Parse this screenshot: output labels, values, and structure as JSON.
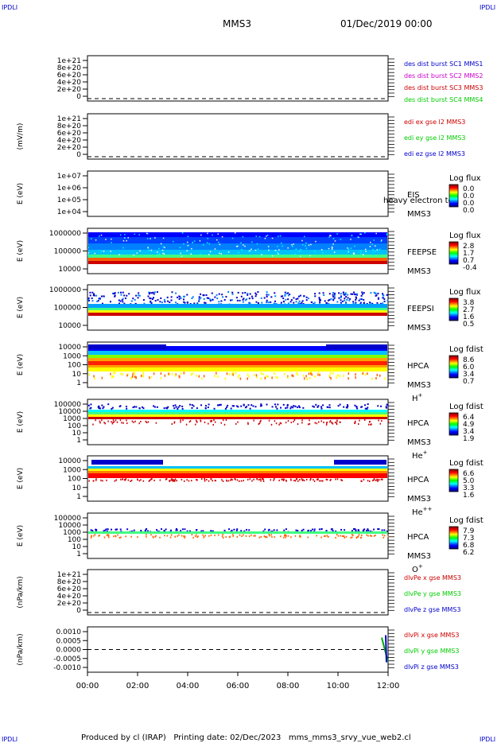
{
  "corners": {
    "tl": "IPDLI",
    "tr": "IPDLI",
    "bl": "IPDLI",
    "br": "IPDLI"
  },
  "header": {
    "mission": "MMS3",
    "date": "01/Dec/2019 00:00"
  },
  "footer": {
    "text": "Produced by cl (IRAP)   Printing date: 02/Dec/2023   mms_mms3_srvy_vue_web2.cl"
  },
  "time_axis": {
    "ticks": [
      "00:00",
      "02:00",
      "04:00",
      "06:00",
      "08:00",
      "10:00",
      "12:00"
    ]
  },
  "colors": {
    "blue": "#0000cc",
    "magenta": "#cc00cc",
    "red": "#cc0000",
    "green": "#00cc00",
    "darkred": "#990000"
  },
  "chart_data": [
    {
      "type": "line",
      "ylabel": "",
      "yticks": [
        "1e+21",
        "8e+20",
        "6e+20",
        "4e+20",
        "2e+20",
        "0"
      ],
      "legend": [
        {
          "text": "des dist burst SC1 MMS1",
          "color": "#0000cc"
        },
        {
          "text": "des dist burst SC2 MMS2",
          "color": "#cc00cc"
        },
        {
          "text": "des dist burst SC3 MMS3",
          "color": "#cc0000"
        },
        {
          "text": "des dist burst SC4 MMS4",
          "color": "#00cc00"
        }
      ]
    },
    {
      "type": "line",
      "ylabel": "(mV/m)",
      "yticks": [
        "1e+21",
        "8e+20",
        "6e+20",
        "4e+20",
        "2e+20",
        "0"
      ],
      "legend": [
        {
          "text": "edi ex gse l2 MMS3",
          "color": "#cc0000"
        },
        {
          "text": "edi ey gse l2 MMS3",
          "color": "#00cc00"
        },
        {
          "text": "edi ez gse l2 MMS3",
          "color": "#0000cc"
        }
      ]
    },
    {
      "type": "heatmap",
      "ylabel": "E (eV)",
      "yticks": [
        "1e+07",
        "1e+06",
        "1e+05",
        "1e+04"
      ],
      "instrument": "EIS",
      "sub": "MMS3",
      "extra": "heavy electron to",
      "cbar_title": "Log flux",
      "cbar_ticks": [
        "0.0",
        "0.0",
        "0.0",
        "0.0"
      ],
      "fill": "none"
    },
    {
      "type": "heatmap",
      "ylabel": "E (eV)",
      "yticks": [
        "1000000",
        "100000",
        "10000"
      ],
      "instrument": "FEEPSE",
      "sub": "MMS3",
      "cbar_title": "Log flux",
      "cbar_ticks": [
        "2.8",
        "1.7",
        "0.7",
        "-0.4"
      ],
      "fill": "feepse"
    },
    {
      "type": "heatmap",
      "ylabel": "E (eV)",
      "yticks": [
        "1000000",
        "100000",
        "10000"
      ],
      "instrument": "FEEPSI",
      "sub": "MMS3",
      "cbar_title": "Log flux",
      "cbar_ticks": [
        "3.8",
        "2.7",
        "1.6",
        "0.5"
      ],
      "fill": "feepsi"
    },
    {
      "type": "heatmap",
      "ylabel": "E (eV)",
      "yticks": [
        "10000",
        "1000",
        "100",
        "10",
        "1"
      ],
      "instrument": "HPCA",
      "sub": "MMS3",
      "species": "H",
      "sup": "+",
      "cbar_title": "Log fdist",
      "cbar_ticks": [
        "8.6",
        "6.0",
        "3.4",
        "0.7"
      ],
      "fill": "hplus"
    },
    {
      "type": "heatmap",
      "ylabel": "E (eV)",
      "yticks": [
        "100000",
        "10000",
        "1000",
        "100",
        "10",
        "1"
      ],
      "instrument": "HPCA",
      "sub": "MMS3",
      "species": "He",
      "sup": "+",
      "cbar_title": "Log fdist",
      "cbar_ticks": [
        "6.4",
        "4.9",
        "3.4",
        "1.9"
      ],
      "fill": "heplus"
    },
    {
      "type": "heatmap",
      "ylabel": "E (eV)",
      "yticks": [
        "10000",
        "1000",
        "100",
        "10",
        "1"
      ],
      "instrument": "HPCA",
      "sub": "MMS3",
      "species": "He",
      "sup": "++",
      "cbar_title": "Log fdist",
      "cbar_ticks": [
        "6.6",
        "5.0",
        "3.3",
        "1.6"
      ],
      "fill": "heplusplus"
    },
    {
      "type": "heatmap",
      "ylabel": "E (eV)",
      "yticks": [
        "100000",
        "10000",
        "1000",
        "100",
        "10",
        "1"
      ],
      "instrument": "HPCA",
      "sub": "MMS3",
      "species": "O",
      "sup": "+",
      "cbar_title": "Log fdist",
      "cbar_ticks": [
        "7.9",
        "7.3",
        "6.8",
        "6.2"
      ],
      "fill": "oplus"
    },
    {
      "type": "line",
      "ylabel": "(nPa/km)",
      "yticks": [
        "1e+21",
        "8e+20",
        "6e+20",
        "4e+20",
        "2e+20",
        "0"
      ],
      "legend": [
        {
          "text": "dlvPe x gse MMS3",
          "color": "#cc0000"
        },
        {
          "text": "dlvPe y gse MMS3",
          "color": "#00cc00"
        },
        {
          "text": "dlvPe z gse MMS3",
          "color": "#0000cc"
        }
      ]
    },
    {
      "type": "line",
      "ylabel": "(nPa/km)",
      "yticks": [
        "0.0010",
        "0.0005",
        "0.0000",
        "-0.0005",
        "-0.0010"
      ],
      "legend": [
        {
          "text": "dlvPi x gse MMS3",
          "color": "#cc0000"
        },
        {
          "text": "dlvPi y gse MMS3",
          "color": "#00cc00"
        },
        {
          "text": "dlvPi z gse MMS3",
          "color": "#0000cc"
        }
      ]
    }
  ]
}
